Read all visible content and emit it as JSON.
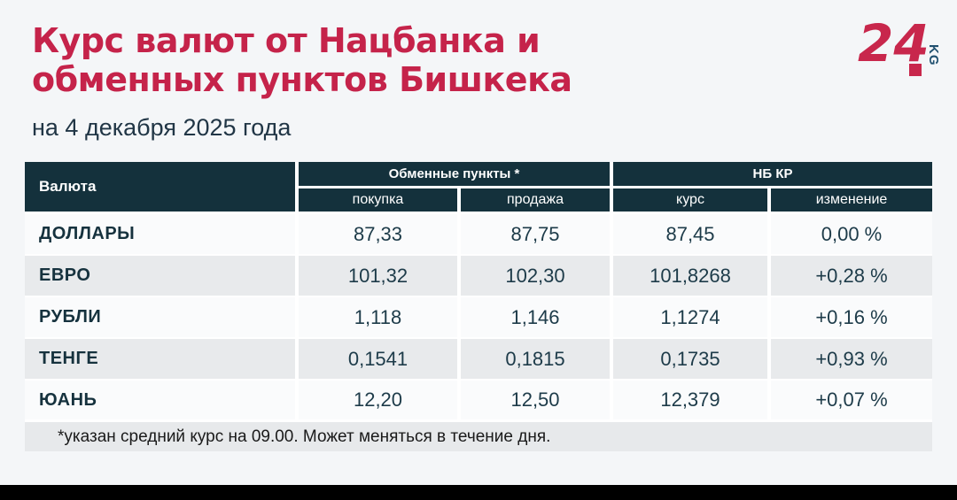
{
  "header": {
    "title_line1": "Курс валют от Нацбанка и",
    "title_line2": "обменных пунктов Бишкека",
    "subtitle": "на 4 декабря 2025 года"
  },
  "logo": {
    "number": "24",
    "suffix": "KG"
  },
  "table": {
    "col_currency": "Валюта",
    "group_exchange": "Обменные пункты *",
    "group_nbkr": "НБ КР",
    "sub_buy": "покупка",
    "sub_sell": "продажа",
    "sub_rate": "курс",
    "sub_change": "изменение",
    "rows": [
      {
        "name": "ДОЛЛАРЫ",
        "buy": "87,33",
        "sell": "87,75",
        "rate": "87,45",
        "change": "0,00 %"
      },
      {
        "name": "ЕВРО",
        "buy": "101,32",
        "sell": "102,30",
        "rate": "101,8268",
        "change": "+0,28 %"
      },
      {
        "name": "РУБЛИ",
        "buy": "1,118",
        "sell": "1,146",
        "rate": "1,1274",
        "change": "+0,16 %"
      },
      {
        "name": "ТЕНГЕ",
        "buy": "0,1541",
        "sell": "0,1815",
        "rate": "0,1735",
        "change": "+0,93 %"
      },
      {
        "name": "ЮАНЬ",
        "buy": "12,20",
        "sell": "12,50",
        "rate": "12,379",
        "change": "+0,07 %"
      }
    ]
  },
  "footnote": "*указан средний курс на 09.00. Может меняться в течение дня.",
  "colors": {
    "title_red": "#c5234a",
    "logo_red": "#c8274c",
    "logo_kg_blue": "#20506f",
    "header_teal": "#14313c",
    "row_light": "#fafbfc",
    "row_gray": "#e8eaec",
    "page_bg": "#f4f6f8",
    "text_dark_teal": "#1d3b49"
  },
  "chart_data": {
    "type": "table",
    "title": "Курс валют от Нацбанка и обменных пунктов Бишкека",
    "subtitle": "на 4 декабря 2025 года",
    "column_groups": [
      "Валюта",
      "Обменные пункты *",
      "НБ КР"
    ],
    "columns": [
      "Валюта",
      "покупка",
      "продажа",
      "курс",
      "изменение"
    ],
    "rows": [
      [
        "ДОЛЛАРЫ",
        "87,33",
        "87,75",
        "87,45",
        "0,00 %"
      ],
      [
        "ЕВРО",
        "101,32",
        "102,30",
        "101,8268",
        "+0,28 %"
      ],
      [
        "РУБЛИ",
        "1,118",
        "1,146",
        "1,1274",
        "+0,16 %"
      ],
      [
        "ТЕНГЕ",
        "0,1541",
        "0,1815",
        "0,1735",
        "+0,93 %"
      ],
      [
        "ЮАНЬ",
        "12,20",
        "12,50",
        "12,379",
        "+0,07 %"
      ]
    ],
    "footnote": "*указан средний курс на 09.00. Может меняться в течение дня."
  }
}
